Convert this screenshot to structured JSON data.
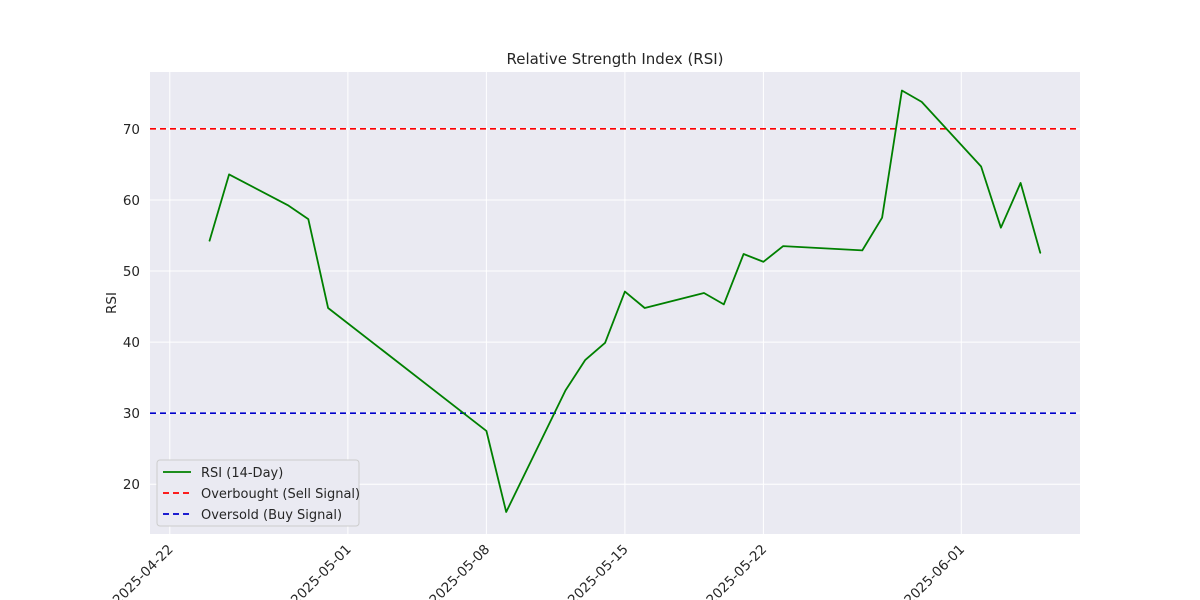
{
  "chart_data": {
    "type": "line",
    "title": "Relative Strength Index (RSI)",
    "xlabel": "",
    "ylabel": "RSI",
    "ylim": [
      13,
      78
    ],
    "xlim": [
      "2025-04-21",
      "2025-06-07"
    ],
    "yticks": [
      20,
      30,
      40,
      50,
      60,
      70
    ],
    "xticks": [
      "2025-04-22",
      "2025-05-01",
      "2025-05-08",
      "2025-05-15",
      "2025-05-22",
      "2025-06-01"
    ],
    "grid": true,
    "legend_position": "lower-left",
    "series": [
      {
        "name": "RSI (14-Day)",
        "color": "#008000",
        "style": "solid",
        "x": [
          "2025-04-24",
          "2025-04-25",
          "2025-04-28",
          "2025-04-29",
          "2025-04-30",
          "2025-05-08",
          "2025-05-09",
          "2025-05-12",
          "2025-05-13",
          "2025-05-14",
          "2025-05-15",
          "2025-05-16",
          "2025-05-19",
          "2025-05-20",
          "2025-05-21",
          "2025-05-22",
          "2025-05-23",
          "2025-05-27",
          "2025-05-28",
          "2025-05-29",
          "2025-05-30",
          "2025-06-02",
          "2025-06-03",
          "2025-06-04",
          "2025-06-05"
        ],
        "values": [
          54.2,
          63.6,
          59.2,
          57.3,
          44.8,
          27.5,
          16.1,
          33.2,
          37.5,
          39.9,
          47.1,
          44.8,
          46.9,
          45.3,
          52.4,
          51.3,
          53.5,
          52.9,
          57.5,
          75.4,
          73.8,
          64.7,
          56.1,
          62.4,
          52.5
        ]
      },
      {
        "name": "Overbought (Sell Signal)",
        "color": "#ff0000",
        "style": "dashed",
        "constant": 70
      },
      {
        "name": "Oversold (Buy Signal)",
        "color": "#0000cc",
        "style": "dashed",
        "constant": 30
      }
    ]
  }
}
